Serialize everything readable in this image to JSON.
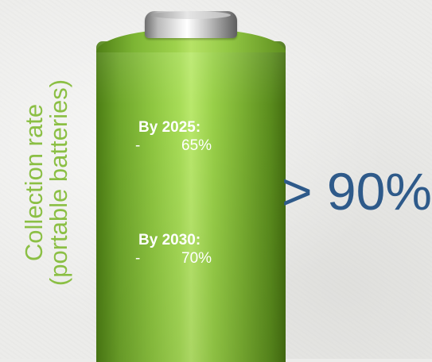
{
  "axis_label": {
    "line1": "Collection rate",
    "line2": "(portable batteries)"
  },
  "targets": [
    {
      "year_label": "By 2025:",
      "bullet": "-",
      "value": "65%"
    },
    {
      "year_label": "By 2030:",
      "bullet": "-",
      "value": "70%"
    }
  ],
  "goal": "> 90%",
  "colors": {
    "background": "#ececea",
    "battery_green": "#8fc741",
    "label_green": "#8bbf44",
    "goal_blue": "#2e5a8a",
    "cap_silver": "#c8c8c8"
  }
}
